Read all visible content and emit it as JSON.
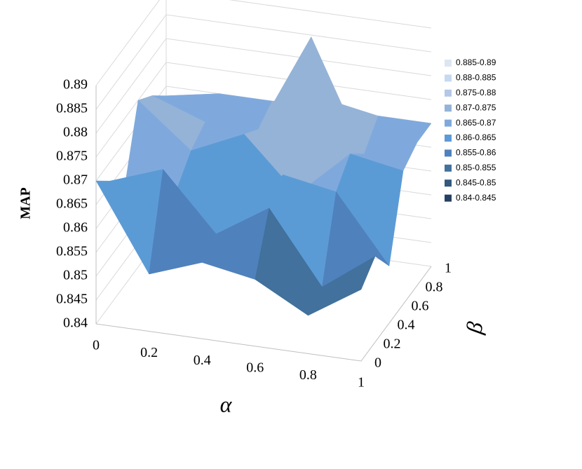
{
  "chart_data": {
    "type": "surface",
    "x_label": "α",
    "y_label": "β",
    "z_label": "MAP",
    "xlim": [
      0,
      1
    ],
    "xticks": [
      0,
      0.2,
      0.4,
      0.6,
      0.8,
      1
    ],
    "ylim": [
      0,
      1
    ],
    "yticks": [
      0,
      0.2,
      0.4,
      0.6,
      0.8,
      1
    ],
    "zlim": [
      0.84,
      0.89
    ],
    "zticks": [
      0.84,
      0.845,
      0.85,
      0.855,
      0.86,
      0.865,
      0.87,
      0.875,
      0.88,
      0.885,
      0.89
    ],
    "z": [
      [
        0.87,
        0.852,
        0.856,
        0.854,
        0.848,
        0.855
      ],
      [
        0.866,
        0.87,
        0.858,
        0.865,
        0.85,
        0.858
      ],
      [
        0.86,
        0.862,
        0.857,
        0.868,
        0.866,
        0.852
      ],
      [
        0.875,
        0.866,
        0.871,
        0.86,
        0.87,
        0.868
      ],
      [
        0.872,
        0.868,
        0.868,
        0.889,
        0.866,
        0.87
      ],
      [
        0.868,
        0.87,
        0.87,
        0.872,
        0.87,
        0.87
      ]
    ],
    "series": [
      {
        "name": "0.885-0.89",
        "color": "#dce6f2"
      },
      {
        "name": "0.88-0.885",
        "color": "#c6d9f1"
      },
      {
        "name": "0.875-0.88",
        "color": "#b4c7e7"
      },
      {
        "name": "0.87-0.875",
        "color": "#95b3d7"
      },
      {
        "name": "0.865-0.87",
        "color": "#7fa9dc"
      },
      {
        "name": "0.86-0.865",
        "color": "#5b9bd5"
      },
      {
        "name": "0.855-0.86",
        "color": "#4f81bd"
      },
      {
        "name": "0.85-0.855",
        "color": "#41719c"
      },
      {
        "name": "0.845-0.85",
        "color": "#34587e"
      },
      {
        "name": "0.84-0.845",
        "color": "#254061"
      }
    ],
    "grid": true
  }
}
